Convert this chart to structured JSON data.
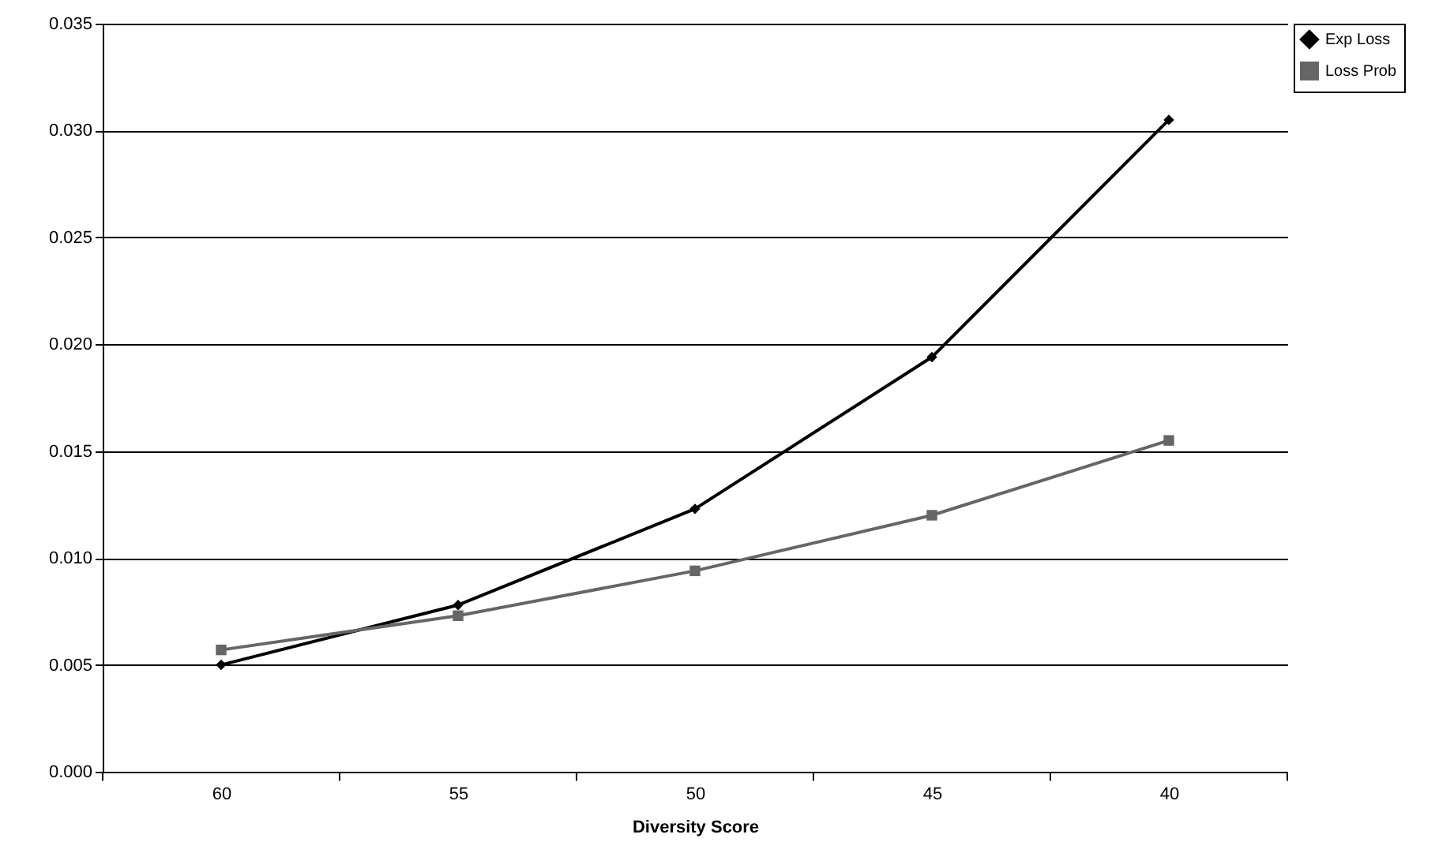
{
  "chart_data": {
    "type": "line",
    "xlabel": "Diversity Score",
    "categories": [
      "60",
      "55",
      "50",
      "45",
      "40"
    ],
    "series": [
      {
        "name": "Exp Loss",
        "color": "#000000",
        "marker": "diamond",
        "values": [
          0.005,
          0.0078,
          0.0123,
          0.0194,
          0.0305
        ]
      },
      {
        "name": "Loss Prob",
        "color": "#666666",
        "marker": "square",
        "values": [
          0.0057,
          0.0073,
          0.0094,
          0.012,
          0.0155
        ]
      }
    ],
    "ylim": [
      0,
      0.035
    ],
    "yticks": [
      {
        "value": 0,
        "label": "0.000"
      },
      {
        "value": 0.005,
        "label": "0.005"
      },
      {
        "value": 0.01,
        "label": "0.010"
      },
      {
        "value": 0.015,
        "label": "0.015"
      },
      {
        "value": 0.02,
        "label": "0.020"
      },
      {
        "value": 0.025,
        "label": "0.025"
      },
      {
        "value": 0.03,
        "label": "0.030"
      },
      {
        "value": 0.035,
        "label": "0.035"
      }
    ],
    "grid": "y",
    "legend": "right",
    "line_style": "solid"
  }
}
